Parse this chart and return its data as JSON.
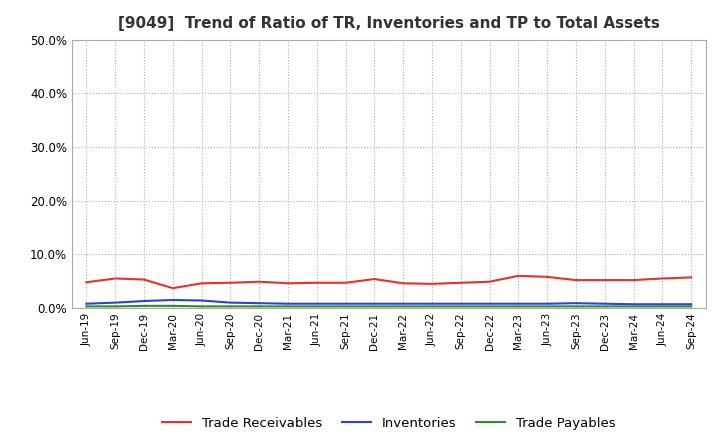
{
  "title": "[9049]  Trend of Ratio of TR, Inventories and TP to Total Assets",
  "x_labels": [
    "Jun-19",
    "Sep-19",
    "Dec-19",
    "Mar-20",
    "Jun-20",
    "Sep-20",
    "Dec-20",
    "Mar-21",
    "Jun-21",
    "Sep-21",
    "Dec-21",
    "Mar-22",
    "Jun-22",
    "Sep-22",
    "Dec-22",
    "Mar-23",
    "Jun-23",
    "Sep-23",
    "Dec-23",
    "Mar-24",
    "Jun-24",
    "Sep-24"
  ],
  "trade_receivables": [
    0.048,
    0.055,
    0.053,
    0.037,
    0.046,
    0.047,
    0.049,
    0.046,
    0.047,
    0.047,
    0.054,
    0.046,
    0.045,
    0.047,
    0.049,
    0.06,
    0.058,
    0.052,
    0.052,
    0.052,
    0.055,
    0.057
  ],
  "inventories": [
    0.008,
    0.01,
    0.013,
    0.015,
    0.014,
    0.01,
    0.009,
    0.008,
    0.008,
    0.008,
    0.008,
    0.008,
    0.008,
    0.008,
    0.008,
    0.008,
    0.008,
    0.009,
    0.008,
    0.007,
    0.007,
    0.007
  ],
  "trade_payables": [
    0.003,
    0.003,
    0.004,
    0.004,
    0.003,
    0.003,
    0.003,
    0.003,
    0.003,
    0.003,
    0.003,
    0.003,
    0.003,
    0.003,
    0.003,
    0.003,
    0.003,
    0.003,
    0.003,
    0.003,
    0.003,
    0.003
  ],
  "tr_color": "#e8312a",
  "inv_color": "#2945d4",
  "tp_color": "#2e8b2e",
  "ylim": [
    0.0,
    0.5
  ],
  "yticks": [
    0.0,
    0.1,
    0.2,
    0.3,
    0.4,
    0.5
  ],
  "bg_color": "#ffffff",
  "plot_bg_color": "#ffffff",
  "grid_color": "#b0b0b0",
  "title_fontsize": 11,
  "legend_labels": [
    "Trade Receivables",
    "Inventories",
    "Trade Payables"
  ]
}
